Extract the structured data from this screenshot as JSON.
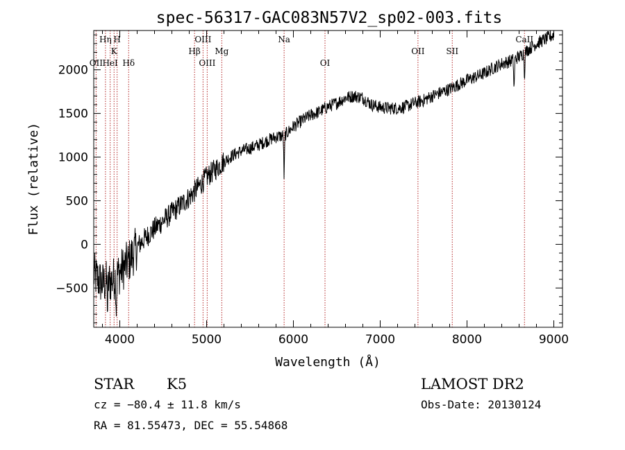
{
  "chart_data": {
    "type": "line",
    "title": "spec-56317-GAC083N57V2_sp02-003.fits",
    "xlabel": "Wavelength (Å)",
    "ylabel": "Flux (relative)",
    "xlim": [
      3700,
      9100
    ],
    "ylim": [
      -950,
      2450
    ],
    "xticks": [
      4000,
      5000,
      6000,
      7000,
      8000,
      9000
    ],
    "xtick_labels": [
      "4000",
      "5000",
      "6000",
      "7000",
      "8000",
      "9000"
    ],
    "yticks": [
      -500,
      0,
      500,
      1000,
      1500,
      2000
    ],
    "ytick_labels": [
      "−500",
      "0",
      "500",
      "1000",
      "1500",
      "2000"
    ],
    "grid": false,
    "line_color": "#000000",
    "marker_color": "#b22222",
    "spectral_lines": [
      {
        "label": "OII",
        "x": 3727,
        "tier": 2
      },
      {
        "label": "Hη",
        "x": 3835,
        "tier": 0
      },
      {
        "label": "HeI",
        "x": 3889,
        "tier": 2
      },
      {
        "label": "K",
        "x": 3934,
        "tier": 1
      },
      {
        "label": "H",
        "x": 3969,
        "tier": 0
      },
      {
        "label": "Hδ",
        "x": 4102,
        "tier": 2
      },
      {
        "label": "Hβ",
        "x": 4861,
        "tier": 1
      },
      {
        "label": "OIII",
        "x": 4959,
        "tier": 0
      },
      {
        "label": "OIII",
        "x": 5007,
        "tier": 2
      },
      {
        "label": "Mg",
        "x": 5175,
        "tier": 1
      },
      {
        "label": "Na",
        "x": 5893,
        "tier": 0
      },
      {
        "label": "OI",
        "x": 6364,
        "tier": 2
      },
      {
        "label": "OII",
        "x": 7435,
        "tier": 1
      },
      {
        "label": "SII",
        "x": 7830,
        "tier": 1
      },
      {
        "label": "CaII",
        "x": 8662,
        "tier": 0
      }
    ],
    "continuum": [
      [
        3700,
        -350
      ],
      [
        3800,
        -450
      ],
      [
        3900,
        -420
      ],
      [
        4000,
        -320
      ],
      [
        4100,
        -200
      ],
      [
        4200,
        -30
      ],
      [
        4300,
        80
      ],
      [
        4400,
        180
      ],
      [
        4500,
        270
      ],
      [
        4600,
        360
      ],
      [
        4700,
        450
      ],
      [
        4800,
        540
      ],
      [
        4900,
        650
      ],
      [
        5000,
        770
      ],
      [
        5100,
        860
      ],
      [
        5200,
        950
      ],
      [
        5300,
        1020
      ],
      [
        5400,
        1070
      ],
      [
        5500,
        1100
      ],
      [
        5600,
        1140
      ],
      [
        5700,
        1190
      ],
      [
        5800,
        1230
      ],
      [
        5900,
        1250
      ],
      [
        6000,
        1350
      ],
      [
        6100,
        1420
      ],
      [
        6200,
        1480
      ],
      [
        6300,
        1520
      ],
      [
        6400,
        1580
      ],
      [
        6500,
        1620
      ],
      [
        6600,
        1680
      ],
      [
        6700,
        1700
      ],
      [
        6800,
        1680
      ],
      [
        6900,
        1600
      ],
      [
        7000,
        1570
      ],
      [
        7100,
        1560
      ],
      [
        7200,
        1560
      ],
      [
        7300,
        1580
      ],
      [
        7400,
        1620
      ],
      [
        7500,
        1650
      ],
      [
        7600,
        1700
      ],
      [
        7700,
        1740
      ],
      [
        7800,
        1780
      ],
      [
        7900,
        1830
      ],
      [
        8000,
        1880
      ],
      [
        8100,
        1920
      ],
      [
        8200,
        1960
      ],
      [
        8300,
        2020
      ],
      [
        8400,
        2070
      ],
      [
        8500,
        2100
      ],
      [
        8600,
        2150
      ],
      [
        8700,
        2230
      ],
      [
        8800,
        2300
      ],
      [
        8900,
        2350
      ],
      [
        9000,
        2400
      ]
    ],
    "absorption_features": [
      {
        "x": 5893,
        "depth": 480
      },
      {
        "x": 8542,
        "depth": 350
      },
      {
        "x": 8662,
        "depth": 260
      },
      {
        "x": 3960,
        "depth": 350
      },
      {
        "x": 3860,
        "depth": 300
      }
    ]
  },
  "info": {
    "left_line1_a": "STAR",
    "left_line1_b": "K5",
    "left_line2": "cz = −80.4 ± 11.8 km/s",
    "left_line3": "RA =  81.55473, DEC =  55.54868",
    "right_line1": "LAMOST DR2",
    "right_line2": "Obs-Date: 20130124"
  }
}
